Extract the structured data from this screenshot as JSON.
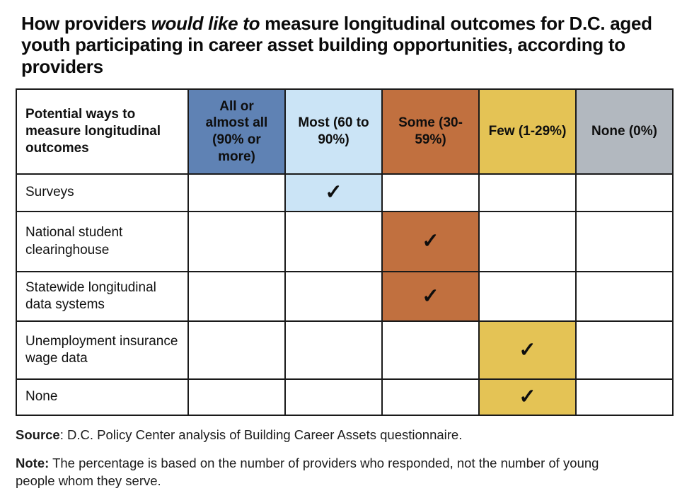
{
  "title": {
    "prefix": "How providers ",
    "italic": "would like to",
    "suffix": " measure longitudinal outcomes for D.C. aged youth participating in career asset building opportunities, according to providers"
  },
  "table": {
    "corner_header": "Potential ways to measure longitudinal outcomes",
    "checkmark": "✓",
    "columns": [
      {
        "label": "All or almost all (90% or more)",
        "color": "#5f82b4"
      },
      {
        "label": "Most (60 to 90%)",
        "color": "#cbe4f6"
      },
      {
        "label": "Some (30-59%)",
        "color": "#c1703f"
      },
      {
        "label": "Few (1-29%)",
        "color": "#e4c355"
      },
      {
        "label": "None (0%)",
        "color": "#b2b8bf"
      }
    ],
    "rows": [
      {
        "label": "Surveys",
        "checked_column": 1
      },
      {
        "label": "National student clearinghouse",
        "checked_column": 2
      },
      {
        "label": "Statewide longitudinal data systems",
        "checked_column": 2
      },
      {
        "label": "Unemployment insurance wage data",
        "checked_column": 3
      },
      {
        "label": "None",
        "checked_column": 3
      }
    ]
  },
  "footer": {
    "source_label": "Source",
    "source_text": ": D.C. Policy Center analysis of Building Career Assets questionnaire.",
    "note_label": "Note:",
    "note_text": " The percentage is based on the number of providers who responded, not the number of young people whom they serve."
  },
  "chart_data": {
    "type": "table",
    "title": "How providers would like to measure longitudinal outcomes for D.C. aged youth participating in career asset building opportunities, according to providers",
    "row_header": "Potential ways to measure longitudinal outcomes",
    "columns": [
      "All or almost all (90% or more)",
      "Most (60 to 90%)",
      "Some (30-59%)",
      "Few (1-29%)",
      "None (0%)"
    ],
    "rows": [
      "Surveys",
      "National student clearinghouse",
      "Statewide longitudinal data systems",
      "Unemployment insurance wage data",
      "None"
    ],
    "checks": [
      {
        "row": "Surveys",
        "column": "Most (60 to 90%)"
      },
      {
        "row": "National student clearinghouse",
        "column": "Some (30-59%)"
      },
      {
        "row": "Statewide longitudinal data systems",
        "column": "Some (30-59%)"
      },
      {
        "row": "Unemployment insurance wage data",
        "column": "Few (1-29%)"
      },
      {
        "row": "None",
        "column": "Few (1-29%)"
      }
    ],
    "column_colors": [
      "#5f82b4",
      "#cbe4f6",
      "#c1703f",
      "#e4c355",
      "#b2b8bf"
    ],
    "source": "D.C. Policy Center analysis of Building Career Assets questionnaire.",
    "note": "The percentage is based on the number of providers who responded, not the number of young people whom they serve."
  }
}
